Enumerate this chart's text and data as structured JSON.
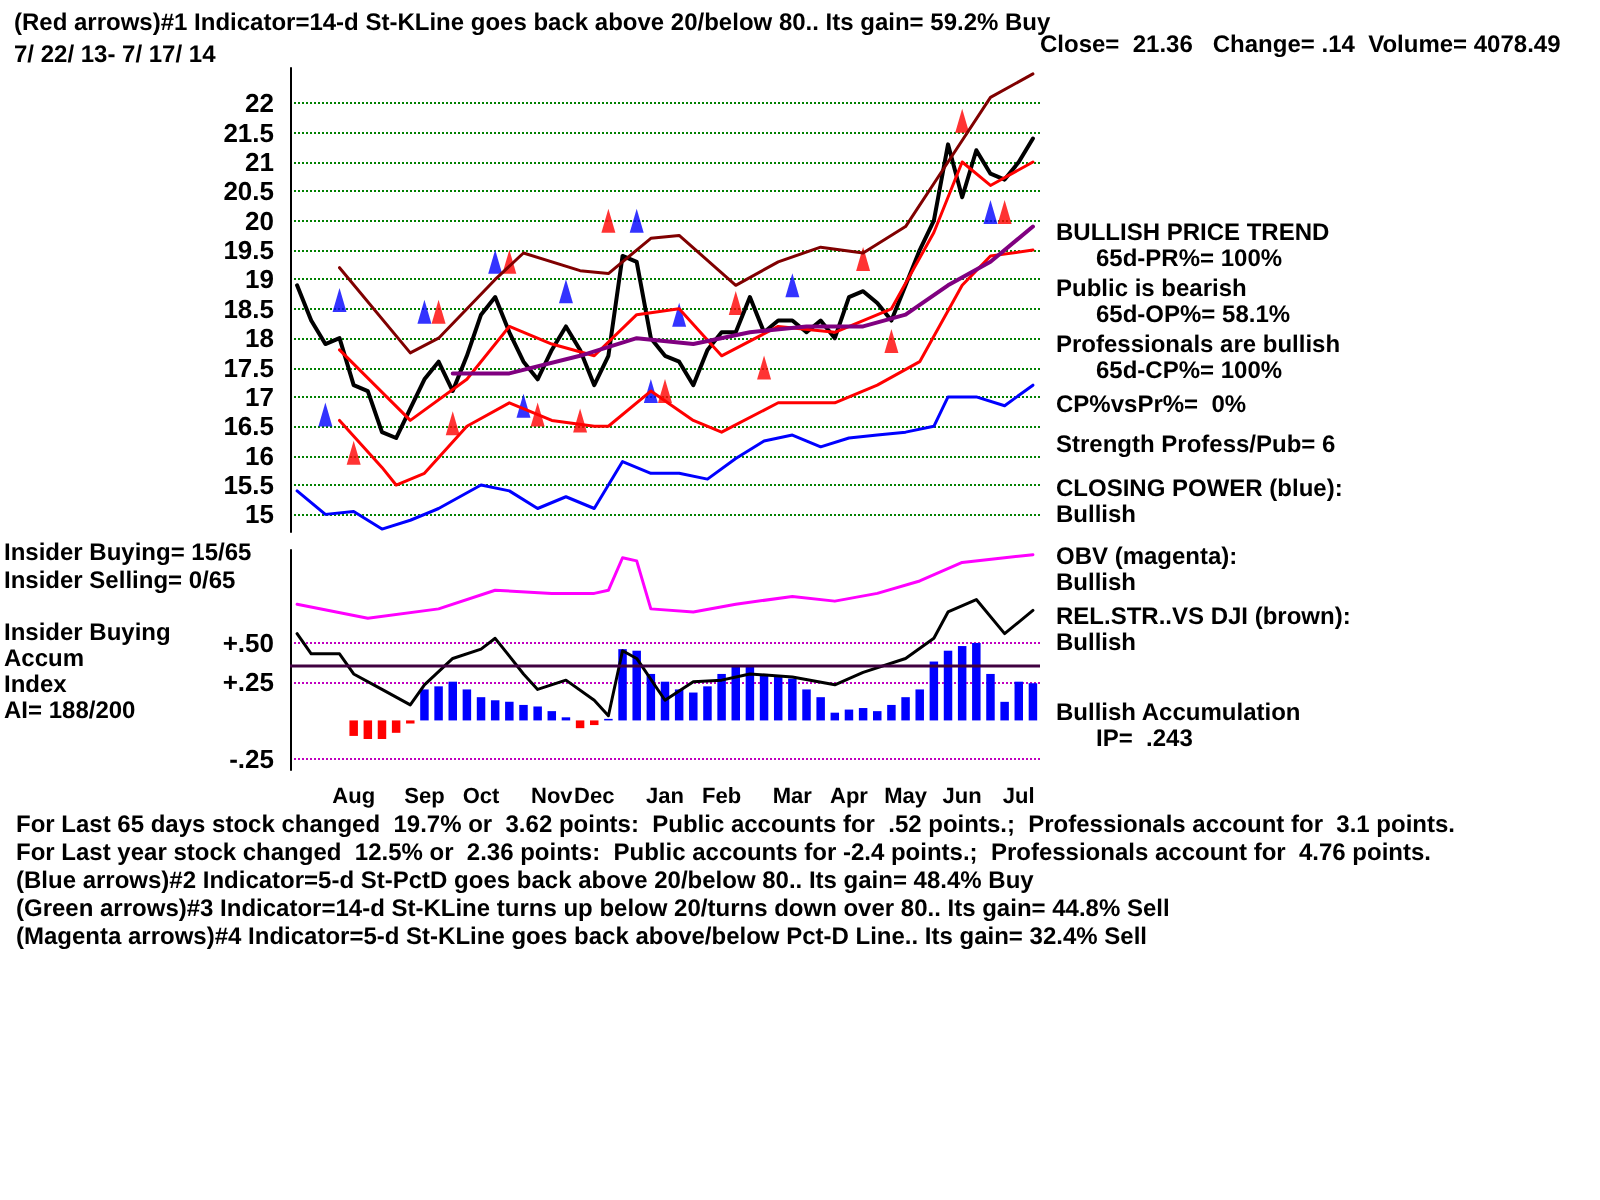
{
  "chart_data": [
    {
      "type": "line",
      "title": "(Red arrows)#1 Indicator=14-d St-KLine goes back above 20/below 80.. Its gain= 59.2% Buy",
      "subtitle": "7/ 22/ 13- 7/ 17/ 14",
      "annotations": [
        "Close=  21.36   Change= .14  Volume= 4078.49",
        "BULLISH PRICE TREND",
        "65d-PR%= 100%",
        "Public is bearish",
        "65d-OP%= 58.1%",
        "Professionals are bullish",
        "65d-CP%= 100%",
        "CP%vsPr%=  0%",
        "Strength Profess/Pub= 6",
        "CLOSING POWER (blue):",
        "Bullish"
      ],
      "categories": [
        null,
        null,
        null,
        null,
        null,
        null,
        null,
        null,
        null,
        null,
        null,
        null,
        null,
        null,
        null,
        null,
        null,
        null,
        null,
        null,
        null,
        null,
        null,
        null,
        null,
        null,
        null,
        null,
        null,
        null,
        null,
        null,
        null,
        null,
        null,
        null,
        null,
        null,
        null,
        null,
        null,
        null,
        null,
        null,
        null,
        null,
        null,
        null,
        null,
        null,
        null,
        null,
        null
      ],
      "ylim": [
        14.7,
        22.6
      ],
      "yticks": [
        15,
        15.5,
        16,
        16.5,
        17,
        17.5,
        18,
        18.5,
        19,
        19.5,
        20,
        20.5,
        21,
        21.5,
        22
      ],
      "grid": "y",
      "tick_labels": "y",
      "marker": "none",
      "line_style": "solid",
      "series": [
        {
          "color": "#000000",
          "values": [
            18.9,
            18.3,
            17.9,
            18.0,
            17.2,
            17.1,
            16.4,
            16.3,
            16.8,
            17.3,
            17.6,
            17.1,
            17.7,
            18.4,
            18.7,
            18.1,
            17.6,
            17.3,
            17.8,
            18.2,
            17.8,
            17.2,
            17.7,
            19.4,
            19.3,
            18.0,
            17.7,
            17.6,
            17.2,
            17.8,
            18.1,
            18.1,
            18.7,
            18.1,
            18.3,
            18.3,
            18.1,
            18.3,
            18.0,
            18.7,
            18.8,
            18.6,
            18.3,
            18.9,
            19.5,
            20.0,
            21.3,
            20.4,
            21.2,
            20.8,
            20.7,
            21.0,
            21.4
          ]
        },
        {
          "color": "#800000",
          "values": [
            null,
            null,
            null,
            19.2,
            null,
            null,
            null,
            null,
            17.75,
            null,
            18.0,
            null,
            null,
            null,
            19.0,
            null,
            19.45,
            null,
            null,
            null,
            19.15,
            null,
            19.1,
            null,
            null,
            19.7,
            null,
            19.75,
            null,
            null,
            null,
            18.9,
            null,
            null,
            19.3,
            null,
            null,
            19.55,
            null,
            null,
            19.45,
            null,
            null,
            19.9,
            null,
            null,
            21.0,
            null,
            null,
            22.1,
            null,
            null,
            22.5
          ]
        },
        {
          "color": "#ff0000",
          "values": [
            null,
            null,
            null,
            17.8,
            null,
            null,
            null,
            null,
            16.6,
            null,
            null,
            null,
            17.3,
            null,
            null,
            18.2,
            null,
            null,
            17.9,
            null,
            null,
            17.7,
            null,
            null,
            18.4,
            null,
            null,
            18.5,
            null,
            null,
            17.7,
            null,
            null,
            null,
            18.2,
            null,
            null,
            null,
            18.1,
            null,
            null,
            null,
            18.5,
            null,
            null,
            19.8,
            null,
            21.0,
            null,
            20.6,
            null,
            null,
            21.0
          ]
        },
        {
          "color": "#ff0000",
          "values": [
            null,
            null,
            null,
            16.6,
            null,
            null,
            15.8,
            15.5,
            null,
            15.7,
            null,
            null,
            16.5,
            null,
            null,
            16.9,
            null,
            null,
            16.6,
            null,
            null,
            16.5,
            16.5,
            null,
            null,
            17.1,
            null,
            null,
            16.6,
            null,
            16.4,
            null,
            null,
            null,
            16.9,
            null,
            null,
            null,
            16.9,
            null,
            null,
            17.2,
            null,
            null,
            17.6,
            null,
            null,
            18.9,
            null,
            19.4,
            null,
            null,
            19.5
          ]
        },
        {
          "color": "#800080",
          "values": [
            null,
            null,
            null,
            null,
            null,
            null,
            null,
            null,
            null,
            null,
            null,
            17.4,
            null,
            null,
            null,
            17.4,
            null,
            null,
            null,
            null,
            17.7,
            null,
            null,
            null,
            18.0,
            null,
            null,
            null,
            17.9,
            null,
            null,
            null,
            18.1,
            null,
            null,
            null,
            18.2,
            null,
            null,
            null,
            18.2,
            null,
            null,
            18.4,
            null,
            null,
            18.9,
            null,
            null,
            19.3,
            null,
            null,
            19.9
          ]
        },
        {
          "color": "#0000ff",
          "values": [
            15.4,
            null,
            15.0,
            null,
            15.05,
            null,
            14.75,
            null,
            14.9,
            null,
            15.1,
            null,
            null,
            15.5,
            null,
            15.4,
            null,
            15.1,
            null,
            15.3,
            null,
            15.1,
            null,
            15.9,
            null,
            15.7,
            null,
            15.7,
            null,
            15.6,
            null,
            15.95,
            null,
            16.25,
            null,
            16.35,
            null,
            16.15,
            null,
            16.3,
            null,
            16.35,
            null,
            16.4,
            null,
            16.5,
            17.0,
            null,
            17.0,
            null,
            16.85,
            null,
            17.2
          ]
        },
        {
          "type": "scatter",
          "marker": "triangle",
          "color": "#ff0000",
          "values": [
            null,
            null,
            null,
            null,
            16.05,
            null,
            null,
            null,
            null,
            null,
            18.45,
            16.55,
            null,
            null,
            null,
            19.3,
            null,
            16.7,
            null,
            null,
            16.6,
            null,
            20.0,
            null,
            null,
            null,
            17.1,
            null,
            null,
            null,
            null,
            18.6,
            null,
            17.5,
            null,
            null,
            null,
            null,
            null,
            null,
            19.35,
            null,
            17.95,
            null,
            null,
            null,
            null,
            21.7,
            null,
            null,
            20.15,
            null,
            null
          ]
        },
        {
          "type": "scatter",
          "marker": "triangle",
          "color": "#0000ff",
          "values": [
            null,
            null,
            16.7,
            18.65,
            null,
            null,
            null,
            null,
            null,
            18.45,
            null,
            null,
            null,
            null,
            19.3,
            null,
            16.85,
            null,
            null,
            18.8,
            null,
            null,
            null,
            null,
            20.0,
            17.1,
            null,
            18.4,
            null,
            null,
            null,
            null,
            null,
            null,
            null,
            18.9,
            null,
            null,
            null,
            null,
            null,
            null,
            null,
            null,
            null,
            null,
            null,
            null,
            null,
            20.15,
            null,
            null,
            null
          ]
        }
      ]
    },
    {
      "type": "bar",
      "annotations": [
        "OBV (magenta):",
        "Bullish",
        "REL.STR..VS DJI (brown):",
        "Bullish",
        "Bullish Accumulation",
        "IP=  .243",
        "Insider Buying= 15/65",
        "Insider Selling= 0/65",
        "Insider Buying",
        "Accum",
        "Index",
        "AI= 188/200",
        "For Last 65 days stock changed  19.7% or  3.62 points:  Public accounts for  .52 points.;  Professionals account for  3.1 points.",
        "For Last year stock changed  12.5% or  2.36 points:  Public accounts for -2.4 points.;  Professionals account for  4.76 points.",
        "(Blue arrows)#2 Indicator=5-d St-PctD goes back above 20/below 80.. Its gain= 48.4% Buy",
        "(Green arrows)#3 Indicator=14-d St-KLine turns up below 20/turns down over 80.. Its gain= 44.8% Sell",
        "(Magenta arrows)#4 Indicator=5-d St-KLine goes back above/below Pct-D Line.. Its gain= 32.4% Sell"
      ],
      "categories": [
        null,
        null,
        null,
        null,
        "Aug",
        null,
        null,
        null,
        null,
        "Sep",
        null,
        null,
        null,
        "Oct",
        null,
        null,
        null,
        null,
        "Nov",
        null,
        null,
        "Dec",
        null,
        null,
        null,
        null,
        "Jan",
        null,
        null,
        null,
        "Feb",
        null,
        null,
        null,
        null,
        "Mar",
        null,
        null,
        null,
        "Apr",
        null,
        null,
        null,
        "May",
        null,
        null,
        null,
        "Jun",
        null,
        null,
        null,
        "Jul",
        null
      ],
      "ylim": [
        -0.32,
        1.1
      ],
      "yticks": [
        {
          "value": 0.5,
          "label": "+.50"
        },
        {
          "value": 0.25,
          "label": "+.25"
        },
        {
          "value": -0.25,
          "label": "-.25"
        }
      ],
      "grid": "y",
      "marker": "none",
      "line_style": "solid",
      "ref_lines": [
        {
          "axis": "y",
          "value": 0.36,
          "color": "#400040"
        }
      ],
      "series": [
        {
          "colors": [
            "#0000ff",
            "#0000ff",
            "#0000ff",
            "#0000ff",
            "#ff0000",
            "#ff0000",
            "#ff0000",
            "#ff0000",
            "#ff0000",
            "#0000ff",
            "#0000ff",
            "#0000ff",
            "#0000ff",
            "#0000ff",
            "#0000ff",
            "#0000ff",
            "#0000ff",
            "#0000ff",
            "#0000ff",
            "#0000ff",
            "#ff0000",
            "#ff0000",
            "#0000ff",
            "#0000ff",
            "#0000ff",
            "#0000ff",
            "#0000ff",
            "#0000ff",
            "#0000ff",
            "#0000ff",
            "#0000ff",
            "#0000ff",
            "#0000ff",
            "#0000ff",
            "#0000ff",
            "#0000ff",
            "#0000ff",
            "#0000ff",
            "#0000ff",
            "#0000ff",
            "#0000ff",
            "#0000ff",
            "#0000ff",
            "#0000ff",
            "#0000ff",
            "#0000ff",
            "#0000ff",
            "#0000ff",
            "#0000ff",
            "#0000ff",
            "#0000ff",
            "#0000ff",
            "#0000ff"
          ],
          "values": [
            null,
            null,
            null,
            null,
            -0.1,
            -0.12,
            -0.12,
            -0.08,
            -0.02,
            0.2,
            0.22,
            0.25,
            0.2,
            0.15,
            0.13,
            0.12,
            0.1,
            0.09,
            0.06,
            0.02,
            -0.05,
            -0.03,
            0.01,
            0.46,
            0.45,
            0.3,
            0.25,
            0.2,
            0.18,
            0.22,
            0.3,
            0.35,
            0.35,
            0.3,
            0.28,
            0.27,
            0.2,
            0.15,
            0.05,
            0.07,
            0.08,
            0.06,
            0.1,
            0.15,
            0.2,
            0.38,
            0.45,
            0.48,
            0.5,
            0.3,
            0.12,
            0.25,
            0.24
          ]
        },
        {
          "type": "line",
          "color": "#000000",
          "values": [
            0.56,
            0.43,
            null,
            0.43,
            0.3,
            null,
            0.2,
            null,
            0.1,
            0.23,
            null,
            0.4,
            null,
            0.46,
            0.53,
            null,
            0.3,
            0.2,
            null,
            0.26,
            null,
            0.13,
            0.03,
            0.45,
            0.4,
            null,
            0.13,
            null,
            0.25,
            null,
            0.26,
            null,
            0.3,
            null,
            null,
            0.28,
            null,
            null,
            0.23,
            null,
            0.31,
            null,
            null,
            0.4,
            null,
            0.53,
            0.7,
            null,
            0.78,
            null,
            0.56,
            null,
            0.71
          ]
        },
        {
          "type": "line",
          "color": "#ff00ff",
          "values": [
            0.75,
            null,
            null,
            null,
            null,
            0.66,
            null,
            null,
            null,
            null,
            0.72,
            null,
            null,
            null,
            0.84,
            null,
            null,
            null,
            0.82,
            null,
            null,
            0.82,
            0.84,
            1.05,
            1.03,
            0.72,
            null,
            null,
            0.7,
            null,
            null,
            0.75,
            null,
            null,
            null,
            0.8,
            null,
            null,
            0.77,
            null,
            null,
            0.82,
            null,
            null,
            0.9,
            null,
            null,
            1.02,
            null,
            null,
            1.05,
            null,
            1.07
          ]
        }
      ]
    }
  ]
}
